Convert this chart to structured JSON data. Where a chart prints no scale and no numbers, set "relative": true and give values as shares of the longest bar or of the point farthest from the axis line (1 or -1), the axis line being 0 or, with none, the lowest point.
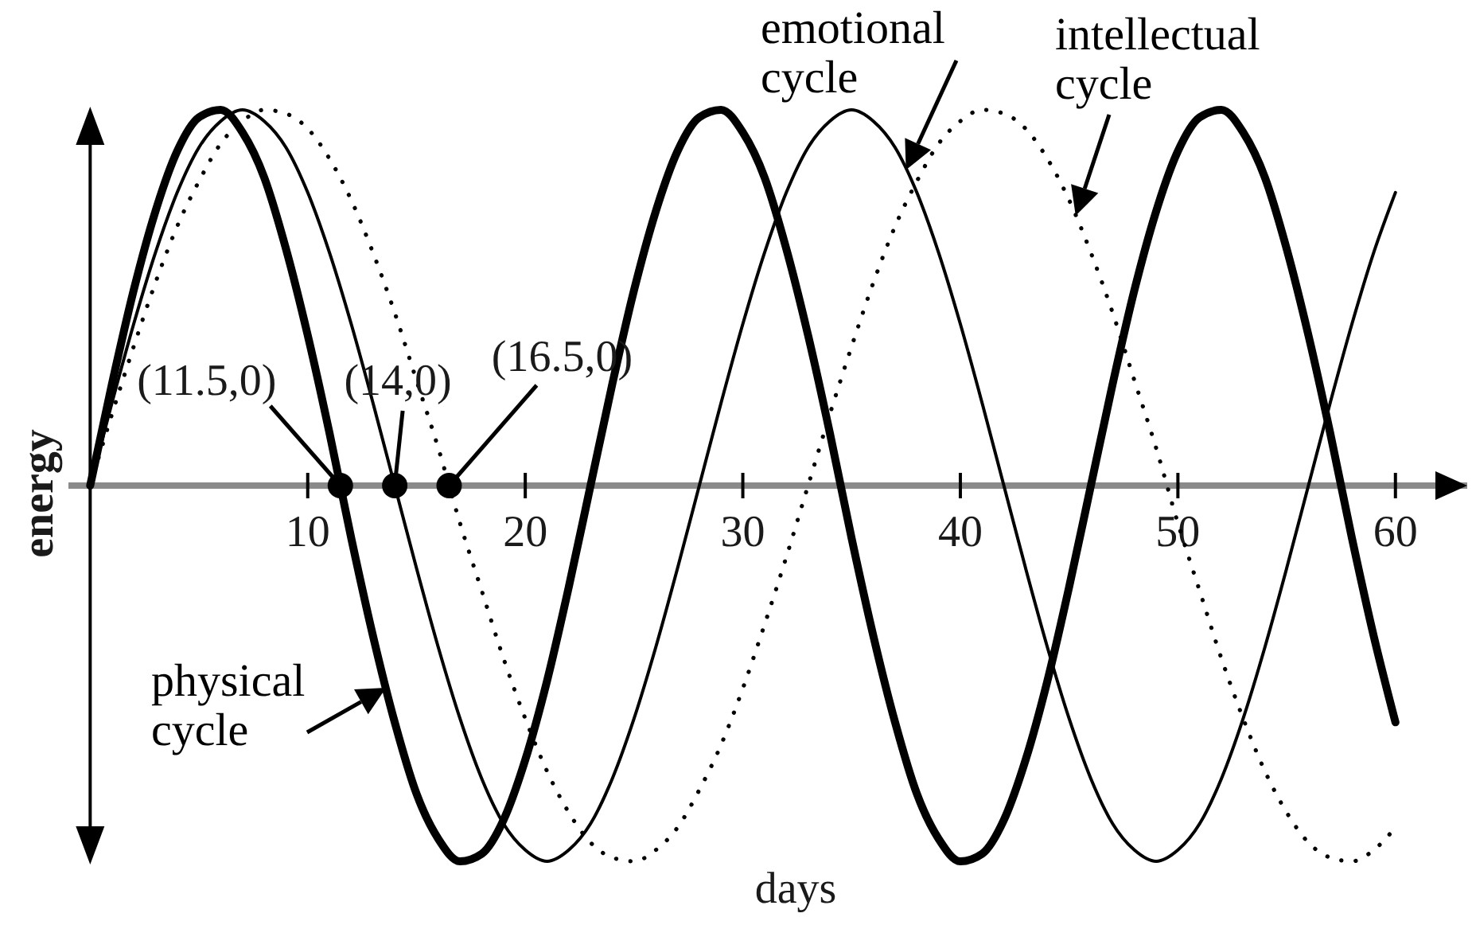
{
  "chart_data": {
    "type": "line",
    "xlabel": "days",
    "ylabel": "energy",
    "relative": true,
    "x": [
      0,
      1,
      2,
      3,
      4,
      5,
      6,
      7,
      8,
      9,
      10,
      11,
      12,
      13,
      14,
      15,
      16,
      17,
      18,
      19,
      20,
      21,
      22,
      23,
      24,
      25,
      26,
      27,
      28,
      29,
      30,
      31,
      32,
      33,
      34,
      35,
      36,
      37,
      38,
      39,
      40,
      41,
      42,
      43,
      44,
      45,
      46,
      47,
      48,
      49,
      50,
      51,
      52,
      53,
      54,
      55,
      56,
      57,
      58,
      59,
      60
    ],
    "xlim": [
      -1,
      63.3
    ],
    "xticks": [
      10,
      20,
      30,
      40,
      50,
      60
    ],
    "tick_labels": "x",
    "series": [
      {
        "name": "physical cycle",
        "color": "#000000",
        "line_style": "solid",
        "values": [
          0,
          0.27,
          0.52,
          0.73,
          0.89,
          0.98,
          1.0,
          0.94,
          0.82,
          0.63,
          0.4,
          0.14,
          -0.14,
          -0.4,
          -0.63,
          -0.82,
          -0.94,
          -1.0,
          -0.98,
          -0.89,
          -0.73,
          -0.52,
          -0.27,
          0,
          0.27,
          0.52,
          0.73,
          0.89,
          0.98,
          1.0,
          0.94,
          0.82,
          0.63,
          0.4,
          0.14,
          -0.14,
          -0.4,
          -0.63,
          -0.82,
          -0.94,
          -1.0,
          -0.98,
          -0.89,
          -0.73,
          -0.52,
          -0.27,
          0,
          0.27,
          0.52,
          0.73,
          0.89,
          0.98,
          1.0,
          0.94,
          0.82,
          0.63,
          0.4,
          0.14,
          -0.14,
          -0.4,
          -0.63
        ]
      },
      {
        "name": "emotional cycle",
        "color": "#000000",
        "line_style": "solid",
        "values": [
          0,
          0.22,
          0.43,
          0.62,
          0.78,
          0.9,
          0.97,
          1.0,
          0.97,
          0.9,
          0.78,
          0.62,
          0.43,
          0.22,
          0,
          -0.22,
          -0.43,
          -0.62,
          -0.78,
          -0.9,
          -0.97,
          -1.0,
          -0.97,
          -0.9,
          -0.78,
          -0.62,
          -0.43,
          -0.22,
          0,
          0.22,
          0.43,
          0.62,
          0.78,
          0.9,
          0.97,
          1.0,
          0.97,
          0.9,
          0.78,
          0.62,
          0.43,
          0.22,
          0,
          -0.22,
          -0.43,
          -0.62,
          -0.78,
          -0.9,
          -0.97,
          -1.0,
          -0.97,
          -0.9,
          -0.78,
          -0.62,
          -0.43,
          -0.22,
          0,
          0.22,
          0.43,
          0.62,
          0.78
        ]
      },
      {
        "name": "intellectual cycle",
        "color": "#000000",
        "line_style": "dotted",
        "values": [
          0,
          0.19,
          0.37,
          0.54,
          0.69,
          0.81,
          0.91,
          0.97,
          1.0,
          0.99,
          0.95,
          0.87,
          0.76,
          0.62,
          0.46,
          0.28,
          0.1,
          -0.1,
          -0.28,
          -0.46,
          -0.62,
          -0.76,
          -0.87,
          -0.95,
          -0.99,
          -1.0,
          -0.97,
          -0.91,
          -0.81,
          -0.69,
          -0.54,
          -0.37,
          -0.19,
          0,
          0.19,
          0.37,
          0.54,
          0.69,
          0.81,
          0.91,
          0.97,
          1.0,
          0.99,
          0.95,
          0.87,
          0.76,
          0.62,
          0.46,
          0.28,
          0.1,
          -0.1,
          -0.28,
          -0.46,
          -0.62,
          -0.76,
          -0.87,
          -0.95,
          -0.99,
          -1.0,
          -0.97,
          -0.91
        ]
      },
      {
        "type": "scatter",
        "color": "#000000",
        "marker": "circle",
        "x": [
          11.5,
          14,
          16.5
        ],
        "values": [
          0,
          0,
          0
        ]
      }
    ],
    "annotations": [
      {
        "text": "(11.5,0)",
        "x": 11.5,
        "y": 0
      },
      {
        "text": "(14,0)",
        "x": 14,
        "y": 0
      },
      {
        "text": "(16.5,0)",
        "x": 16.5,
        "y": 0
      }
    ]
  }
}
